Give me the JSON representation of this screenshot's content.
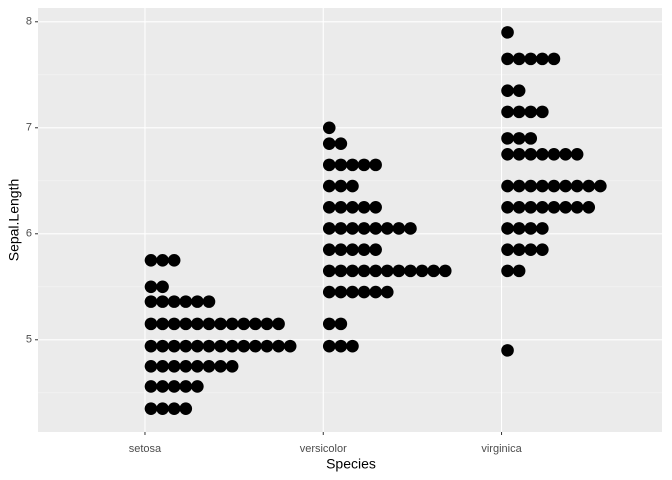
{
  "chart_data": {
    "type": "dotplot",
    "x_label": "Species",
    "y_label": "Sepal.Length",
    "categories": [
      "setosa",
      "versicolor",
      "virginica"
    ],
    "series": [
      {
        "name": "setosa",
        "color": "#000000",
        "bin_centers": [
          5.75,
          5.5,
          5.36,
          5.15,
          4.94,
          4.75,
          4.56,
          4.35
        ],
        "counts": [
          3,
          2,
          6,
          12,
          13,
          8,
          5,
          4
        ]
      },
      {
        "name": "versicolor",
        "color": "#000000",
        "bin_centers": [
          7.0,
          6.85,
          6.65,
          6.45,
          6.25,
          6.05,
          5.85,
          5.65,
          5.45,
          5.15,
          4.94
        ],
        "counts": [
          1,
          2,
          5,
          3,
          5,
          8,
          5,
          11,
          6,
          2,
          3
        ]
      },
      {
        "name": "virginica",
        "color": "#000000",
        "bin_centers": [
          7.9,
          7.65,
          7.35,
          7.15,
          6.9,
          6.75,
          6.45,
          6.25,
          6.05,
          5.85,
          5.65,
          4.9
        ],
        "counts": [
          1,
          5,
          2,
          4,
          3,
          7,
          9,
          8,
          4,
          4,
          2,
          1
        ]
      }
    ],
    "ylim": [
      4.13,
      8.13
    ],
    "yticks": [
      5,
      6,
      7,
      8
    ],
    "y_minor_ticks": [
      4.5,
      5.5,
      6.5,
      7.5
    ],
    "grid": true
  }
}
